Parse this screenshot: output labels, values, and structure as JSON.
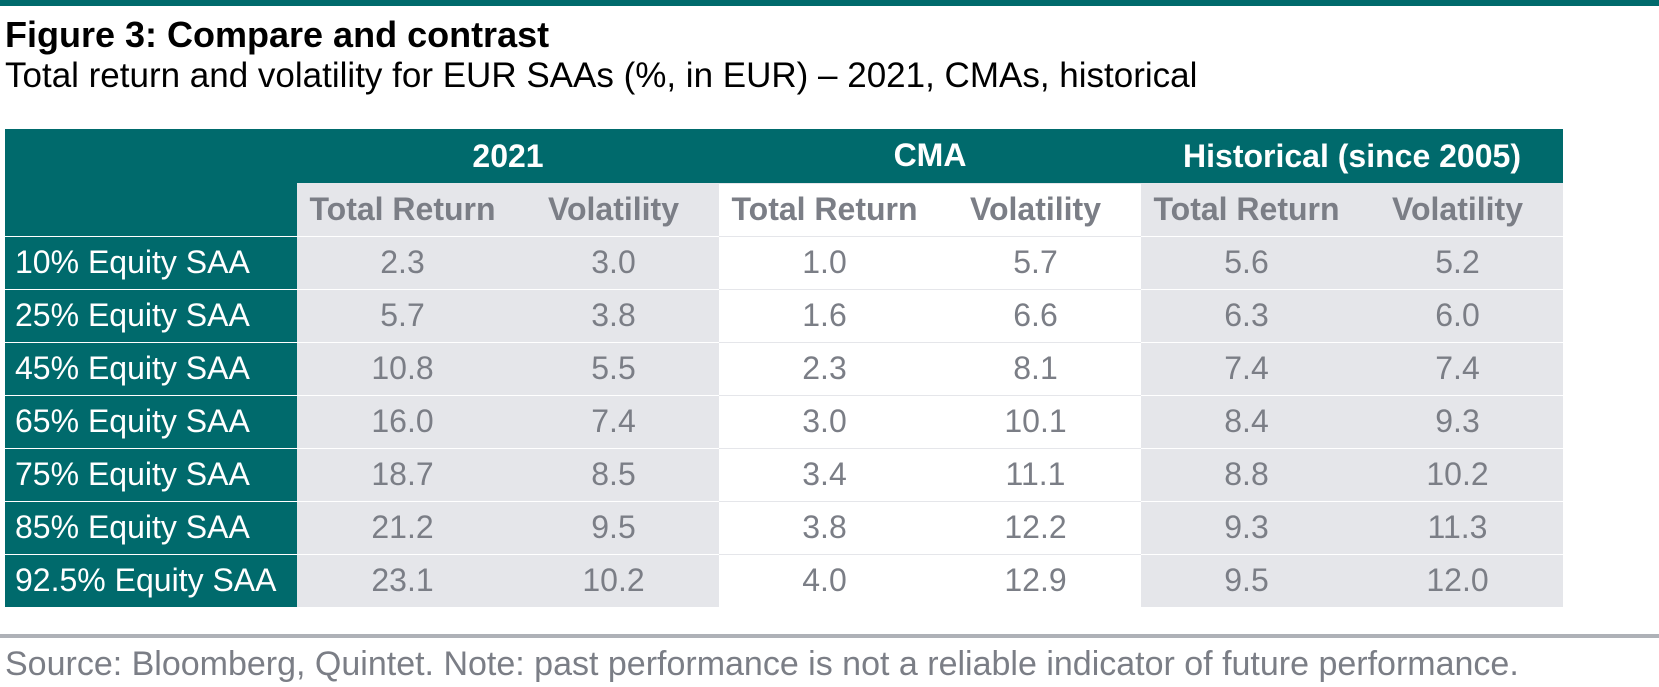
{
  "title": "Figure 3: Compare and contrast",
  "subtitle": "Total return and volatility for EUR SAAs (%, in EUR) – 2021, CMAs, historical",
  "source": "Source: Bloomberg, Quintet. Note: past performance is not a reliable indicator of future performance.",
  "colors": {
    "header_bg": "#006a6c",
    "shade": "#e5e6ea",
    "value_text": "#7b7e86"
  },
  "chart_data": {
    "type": "table",
    "groups": [
      "2021",
      "CMA",
      "Historical (since 2005)"
    ],
    "columns": [
      "Total Return",
      "Volatility",
      "Total Return",
      "Volatility",
      "Total Return",
      "Volatility"
    ],
    "rows": [
      {
        "label": "10% Equity SAA",
        "values": [
          "2.3",
          "3.0",
          "1.0",
          "5.7",
          "5.6",
          "5.2"
        ]
      },
      {
        "label": "25% Equity SAA",
        "values": [
          "5.7",
          "3.8",
          "1.6",
          "6.6",
          "6.3",
          "6.0"
        ]
      },
      {
        "label": "45% Equity SAA",
        "values": [
          "10.8",
          "5.5",
          "2.3",
          "8.1",
          "7.4",
          "7.4"
        ]
      },
      {
        "label": "65% Equity SAA",
        "values": [
          "16.0",
          "7.4",
          "3.0",
          "10.1",
          "8.4",
          "9.3"
        ]
      },
      {
        "label": "75% Equity SAA",
        "values": [
          "18.7",
          "8.5",
          "3.4",
          "11.1",
          "8.8",
          "10.2"
        ]
      },
      {
        "label": "85% Equity SAA",
        "values": [
          "21.2",
          "9.5",
          "3.8",
          "12.2",
          "9.3",
          "11.3"
        ]
      },
      {
        "label": "92.5% Equity SAA",
        "values": [
          "23.1",
          "10.2",
          "4.0",
          "12.9",
          "9.5",
          "12.0"
        ]
      }
    ]
  }
}
